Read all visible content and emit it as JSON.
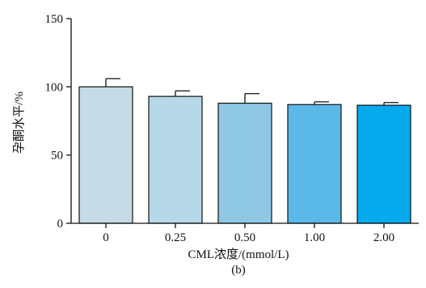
{
  "chart_data": {
    "type": "bar",
    "categories": [
      "0",
      "0.25",
      "0.50",
      "1.00",
      "2.00"
    ],
    "values": [
      100,
      93,
      88,
      87,
      86.5
    ],
    "errors": [
      6,
      4,
      7,
      2,
      2
    ],
    "ylabel": "孕酮水平/%",
    "xlabel": "CML浓度/(mmol/L)",
    "ylim": [
      0,
      150
    ],
    "yticks": [
      "0",
      "50",
      "100",
      "150"
    ],
    "grid": false,
    "legend": "none",
    "bar_colors": [
      "#c6dbe6",
      "#b6d7e7",
      "#8fc8e4",
      "#5ab9e8",
      "#05aaec"
    ],
    "edge_color": "#111111"
  },
  "panel_label": "(b)"
}
